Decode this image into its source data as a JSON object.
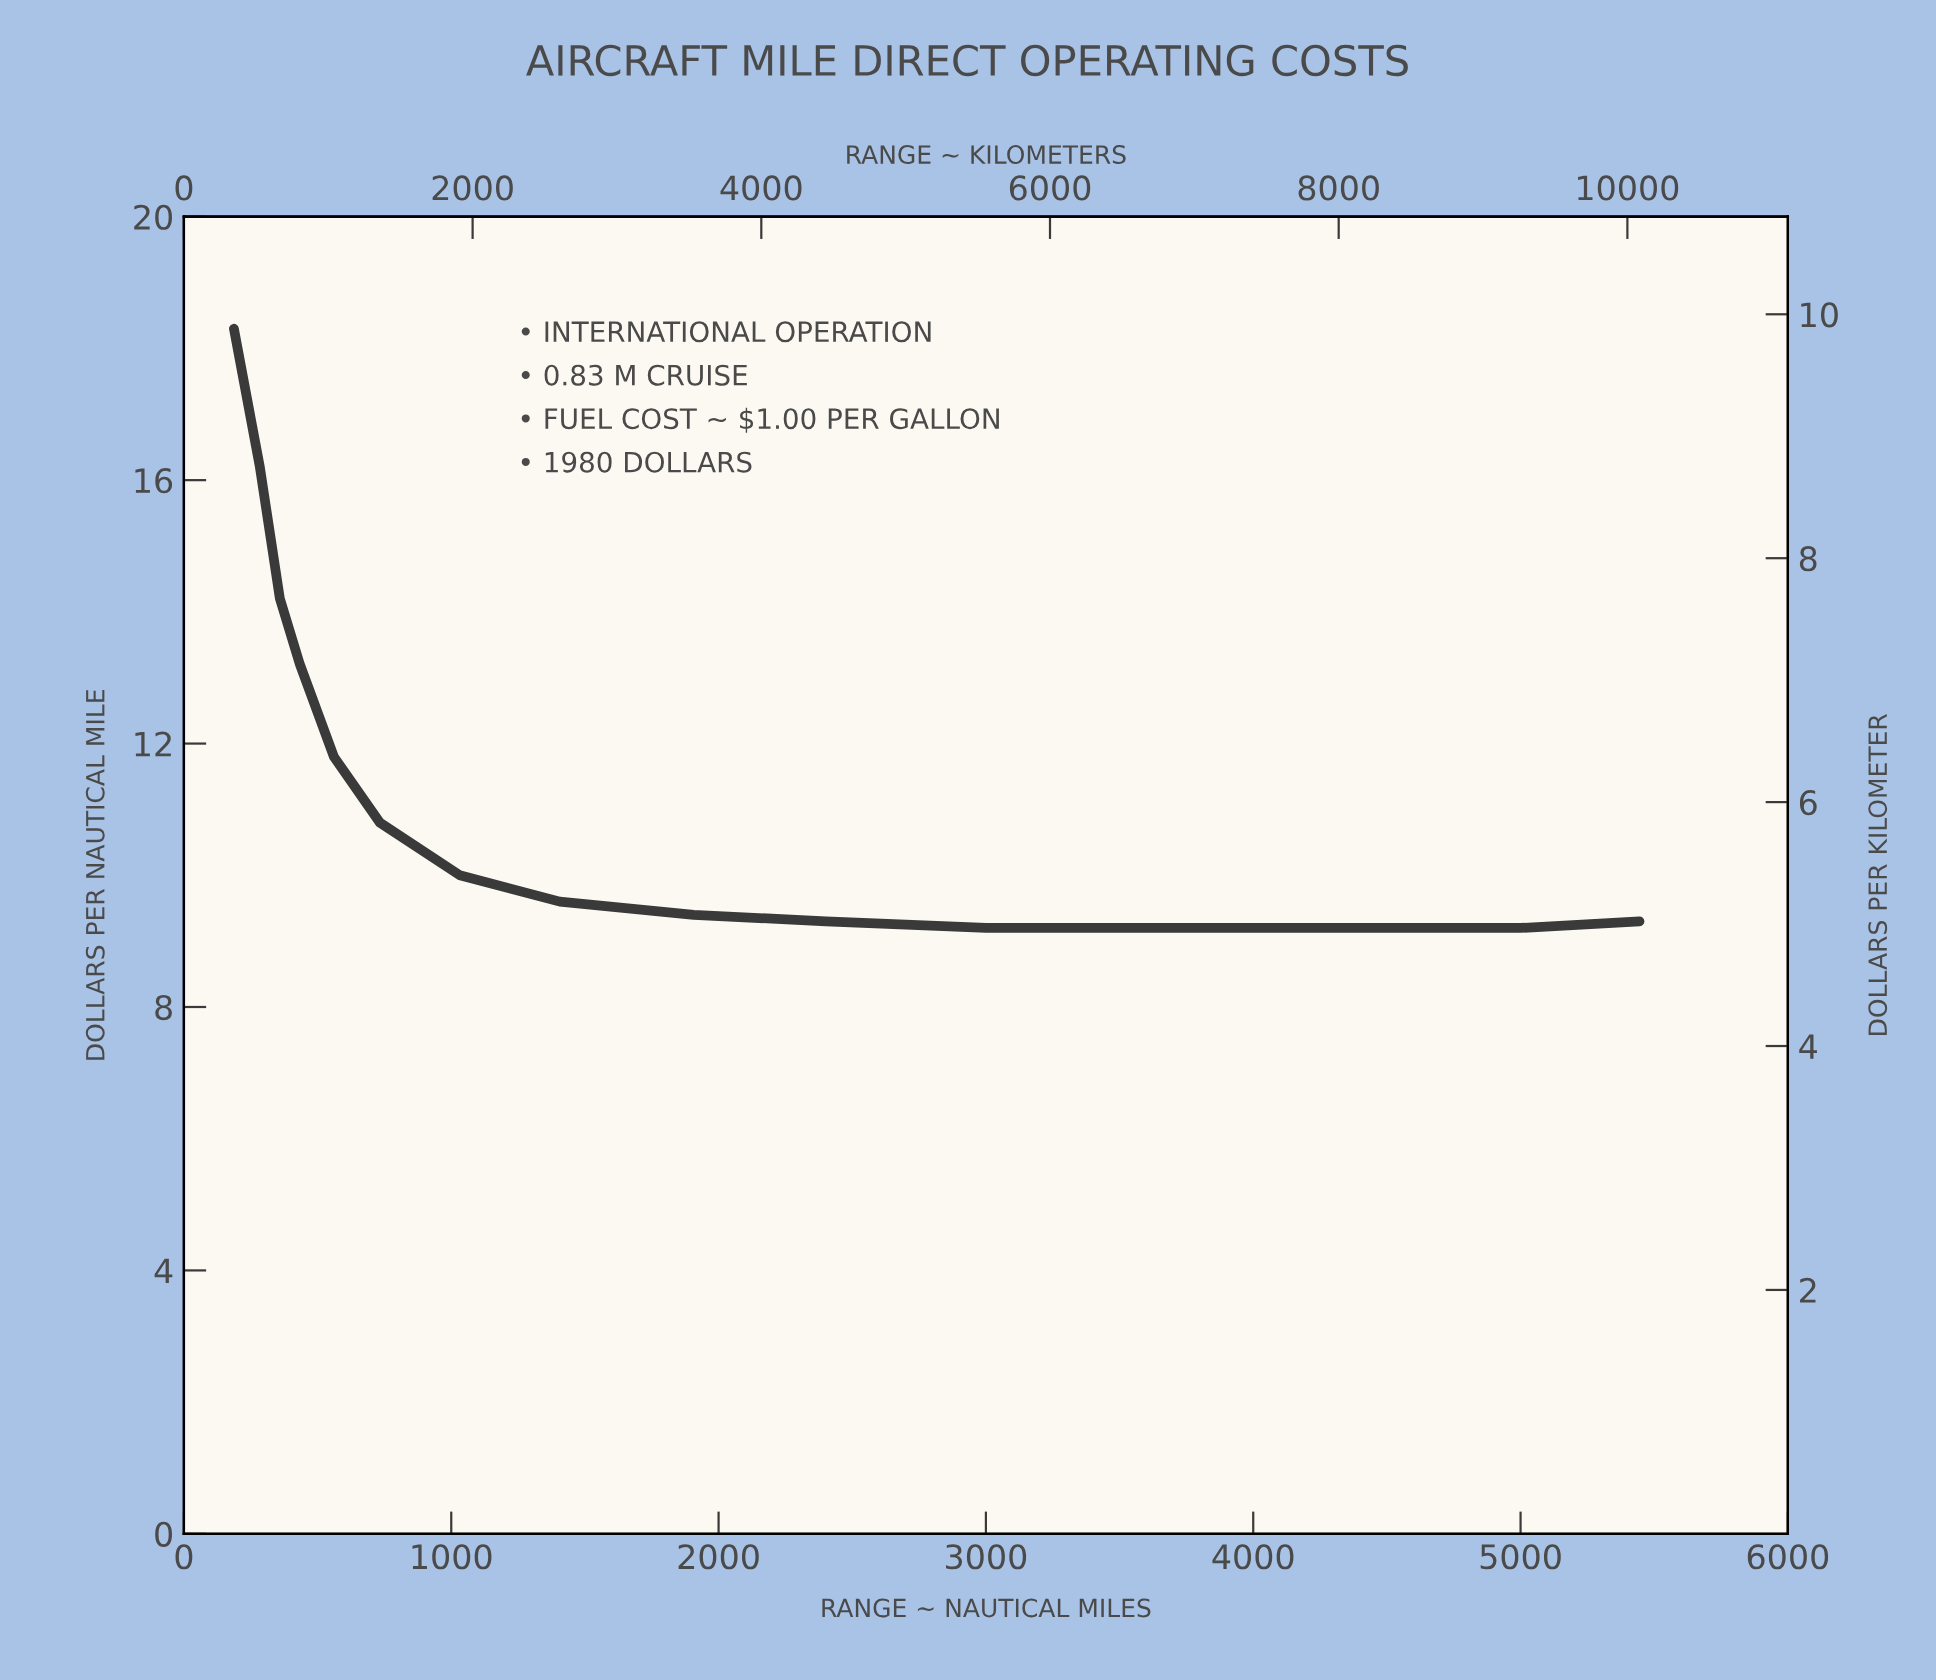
{
  "chart_data": {
    "type": "line",
    "title": "AIRCRAFT MILE DIRECT OPERATING COSTS",
    "xlabel": "RANGE ~ NAUTICAL MILES",
    "x2label": "RANGE ~ KILOMETERS",
    "ylabel": "DOLLARS PER NAUTICAL MILE",
    "y2label": "DOLLARS PER KILOMETER",
    "x": [
      187,
      284,
      359,
      434,
      561,
      733,
      1032,
      1406,
      1907,
      2401,
      3000,
      3650,
      4300,
      5000,
      5445
    ],
    "series": [
      {
        "color": "#3a3a3a",
        "values": [
          18.3,
          16.2,
          14.2,
          13.2,
          11.8,
          10.8,
          10.0,
          9.6,
          9.4,
          9.3,
          9.2,
          9.2,
          9.2,
          9.2,
          9.3
        ]
      }
    ],
    "xlim": [
      0,
      6000
    ],
    "xticks": [
      0,
      1000,
      2000,
      3000,
      4000,
      5000,
      6000
    ],
    "x2lim": [
      0,
      11112
    ],
    "x2ticks": [
      0,
      2000,
      4000,
      6000,
      8000,
      10000
    ],
    "ylim": [
      0,
      20
    ],
    "yticks": [
      0,
      4,
      8,
      12,
      16,
      20
    ],
    "y2lim": [
      0,
      10.8
    ],
    "y2ticks": [
      2,
      4,
      6,
      8,
      10
    ],
    "annotations": [
      "• INTERNATIONAL OPERATION",
      "• 0.83 M CRUISE",
      "• FUEL COST ~ $1.00 PER GALLON",
      "• 1980 DOLLARS"
    ],
    "grid": false,
    "legend": false,
    "marker": "none",
    "line_style": "solid"
  }
}
